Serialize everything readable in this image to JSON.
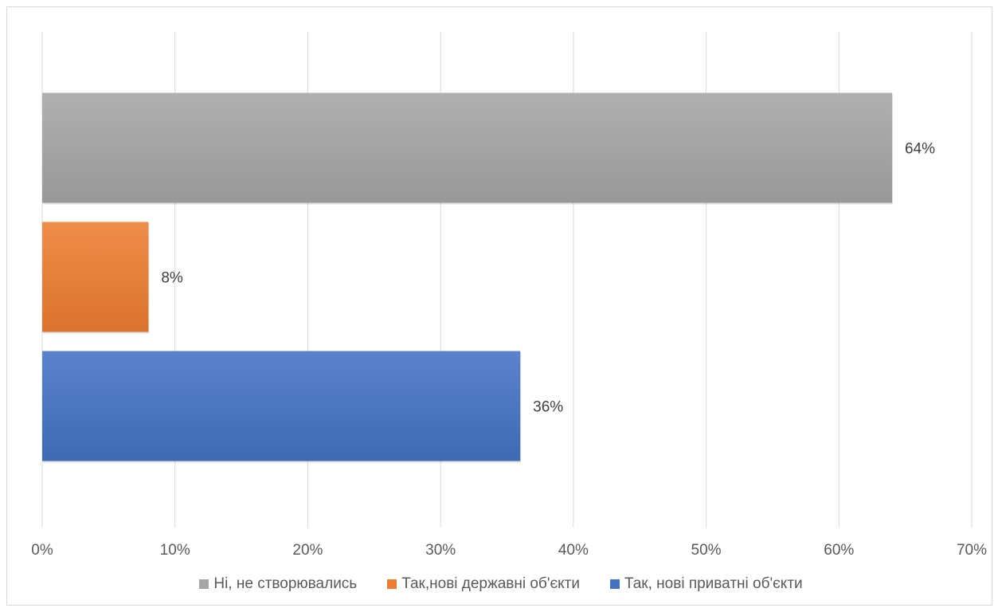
{
  "chart_data": {
    "type": "bar",
    "orientation": "horizontal",
    "title": "",
    "xlabel": "",
    "ylabel": "",
    "xlim": [
      0,
      70
    ],
    "x_ticks": [
      "0%",
      "10%",
      "20%",
      "30%",
      "40%",
      "50%",
      "60%",
      "70%"
    ],
    "grid": true,
    "legend_position": "bottom",
    "series": [
      {
        "name": "Ні, не створювались",
        "value": 64,
        "label": "64%",
        "color": "#a5a5a5"
      },
      {
        "name": "Так,нові державні об'єкти",
        "value": 8,
        "label": "8%",
        "color": "#ed7d31"
      },
      {
        "name": "Так, нові приватні об'єкти",
        "value": 36,
        "label": "36%",
        "color": "#4472c4"
      }
    ]
  },
  "legend": {
    "items": [
      {
        "label": "Ні, не створювались",
        "color": "#a5a5a5"
      },
      {
        "label": "Так,нові державні об'єкти",
        "color": "#ed7d31"
      },
      {
        "label": "Так, нові приватні об'єкти",
        "color": "#4472c4"
      }
    ]
  }
}
